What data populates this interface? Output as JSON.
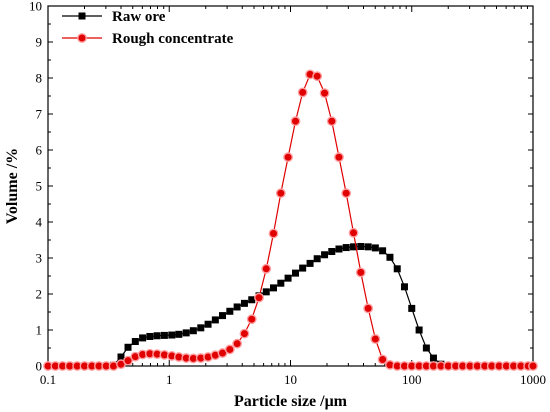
{
  "chart_data": {
    "type": "line",
    "xlabel": "Particle size /μm",
    "ylabel": "Volume /%",
    "xscale": "log",
    "xlim": [
      0.1,
      1000
    ],
    "ylim": [
      0,
      10
    ],
    "x_ticks": [
      0.1,
      1,
      10,
      100,
      1000
    ],
    "x_tick_labels": [
      "0.1",
      "1",
      "10",
      "100",
      "1000"
    ],
    "y_ticks": [
      0,
      1,
      2,
      3,
      4,
      5,
      6,
      7,
      8,
      9,
      10
    ],
    "y_tick_labels": [
      "0",
      "1",
      "2",
      "3",
      "4",
      "5",
      "6",
      "7",
      "8",
      "9",
      "10"
    ],
    "legend_position": "top-left",
    "grid": false,
    "series": [
      {
        "name": "Raw ore",
        "color": "#000000",
        "marker": "square",
        "x": [
          0.1,
          0.115,
          0.132,
          0.151,
          0.174,
          0.2,
          0.23,
          0.263,
          0.302,
          0.347,
          0.4,
          0.457,
          0.525,
          0.603,
          0.692,
          0.794,
          0.912,
          1.05,
          1.2,
          1.38,
          1.58,
          1.82,
          2.09,
          2.4,
          2.75,
          3.16,
          3.63,
          4.17,
          4.79,
          5.5,
          6.31,
          7.24,
          8.32,
          9.55,
          11.0,
          12.6,
          14.5,
          16.6,
          19.1,
          21.9,
          25.1,
          28.8,
          33.1,
          38.0,
          43.7,
          50.1,
          57.5,
          66.1,
          75.9,
          87.1,
          100,
          115,
          132,
          151,
          174,
          200,
          230,
          263,
          302,
          347,
          400,
          457,
          525,
          603,
          692,
          794,
          912,
          1000
        ],
        "y": [
          0,
          0,
          0,
          0,
          0,
          0,
          0,
          0,
          0,
          0.02,
          0.25,
          0.52,
          0.68,
          0.78,
          0.82,
          0.84,
          0.85,
          0.86,
          0.88,
          0.92,
          0.98,
          1.06,
          1.16,
          1.28,
          1.4,
          1.52,
          1.64,
          1.74,
          1.84,
          1.95,
          2.06,
          2.17,
          2.3,
          2.44,
          2.58,
          2.72,
          2.85,
          2.98,
          3.09,
          3.18,
          3.25,
          3.29,
          3.31,
          3.32,
          3.31,
          3.28,
          3.2,
          3.02,
          2.7,
          2.2,
          1.6,
          1.0,
          0.5,
          0.22,
          0.05,
          0,
          0,
          0,
          0,
          0,
          0,
          0,
          0,
          0,
          0,
          0,
          0,
          0
        ]
      },
      {
        "name": "Rough concentrate",
        "color": "#e00000",
        "marker": "circle",
        "x": [
          0.1,
          0.115,
          0.132,
          0.151,
          0.174,
          0.2,
          0.23,
          0.263,
          0.302,
          0.347,
          0.4,
          0.457,
          0.525,
          0.603,
          0.692,
          0.794,
          0.912,
          1.05,
          1.2,
          1.38,
          1.58,
          1.82,
          2.09,
          2.4,
          2.75,
          3.16,
          3.63,
          4.17,
          4.79,
          5.5,
          6.31,
          7.24,
          8.32,
          9.55,
          11.0,
          12.6,
          14.5,
          16.6,
          19.1,
          21.9,
          25.1,
          28.8,
          33.1,
          38.0,
          43.7,
          50.1,
          57.5,
          66.1,
          75.9,
          87.1,
          100,
          115,
          132,
          151,
          174,
          200,
          230,
          263,
          302,
          347,
          400,
          457,
          525,
          603,
          692,
          794,
          912,
          1000
        ],
        "y": [
          0,
          0,
          0,
          0,
          0,
          0,
          0,
          0,
          0,
          0,
          0.05,
          0.15,
          0.26,
          0.32,
          0.34,
          0.33,
          0.31,
          0.28,
          0.25,
          0.22,
          0.21,
          0.22,
          0.25,
          0.3,
          0.36,
          0.46,
          0.62,
          0.9,
          1.3,
          1.9,
          2.7,
          3.68,
          4.8,
          5.8,
          6.8,
          7.6,
          8.1,
          8.05,
          7.58,
          6.8,
          5.8,
          4.8,
          3.7,
          2.6,
          1.6,
          0.75,
          0.18,
          0.03,
          0,
          0,
          0,
          0,
          0,
          0,
          0,
          0,
          0,
          0,
          0,
          0,
          0,
          0,
          0,
          0,
          0,
          0,
          0,
          0
        ]
      }
    ]
  }
}
